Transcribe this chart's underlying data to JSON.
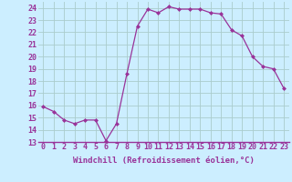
{
  "hours": [
    0,
    1,
    2,
    3,
    4,
    5,
    6,
    7,
    8,
    9,
    10,
    11,
    12,
    13,
    14,
    15,
    16,
    17,
    18,
    19,
    20,
    21,
    22,
    23
  ],
  "values": [
    15.9,
    15.5,
    14.8,
    14.5,
    14.8,
    14.8,
    13.1,
    14.5,
    18.6,
    22.5,
    23.9,
    23.6,
    24.1,
    23.9,
    23.9,
    23.9,
    23.6,
    23.5,
    22.2,
    21.7,
    20.0,
    19.2,
    19.0,
    17.4
  ],
  "line_color": "#993399",
  "marker": "D",
  "marker_size": 2.0,
  "line_width": 0.9,
  "bg_color": "#cceeff",
  "grid_color": "#aacccc",
  "xlabel": "Windchill (Refroidissement éolien,°C)",
  "xlabel_fontsize": 6.5,
  "tick_fontsize": 6.0,
  "ylim": [
    13,
    24.5
  ],
  "yticks": [
    13,
    14,
    15,
    16,
    17,
    18,
    19,
    20,
    21,
    22,
    23,
    24
  ],
  "xlim": [
    -0.5,
    23.5
  ]
}
